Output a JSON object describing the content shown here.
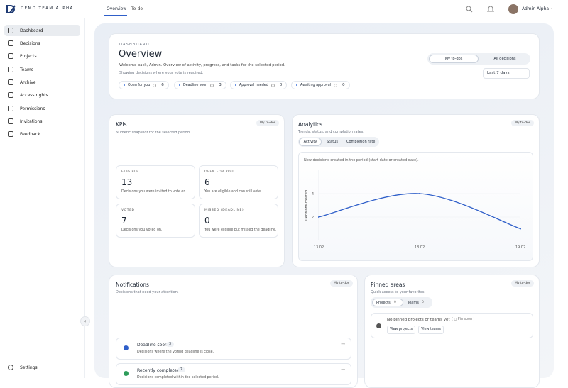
{
  "brand": "DEMO TEAM ALPHA",
  "top_tabs": [
    "Overview",
    "To-do"
  ],
  "user": "Admin Alpha",
  "sidebar": [
    "Dashboard",
    "Decisions",
    "Projects",
    "Teams",
    "Archive",
    "Access rights",
    "Permissions",
    "Invitations",
    "Feedback"
  ],
  "settings": "Settings",
  "overview": {
    "eyebrow": "DASHBOARD",
    "title": "Overview",
    "welcome": "Welcome back, Admin. Overview of activity, progress, and tasks for the selected period.",
    "note": "Showing decisions where your vote is required.",
    "chips": [
      {
        "label": "Open for you",
        "count": "6"
      },
      {
        "label": "Deadline soon",
        "count": "3"
      },
      {
        "label": "Approval needed",
        "count": "0"
      },
      {
        "label": "Awaiting approval",
        "count": "0"
      }
    ],
    "toggle": [
      "My to-dos",
      "All decisions"
    ],
    "period": "Last 7 days"
  },
  "kpis": {
    "title": "KPIs",
    "subtitle": "Numeric snapshot for the selected period.",
    "badge": "My to-dos",
    "items": [
      {
        "label": "ELIGIBLE",
        "value": "13",
        "desc": "Decisions you were invited to vote on."
      },
      {
        "label": "OPEN FOR YOU",
        "value": "6",
        "desc": "You are eligible and can still vote."
      },
      {
        "label": "VOTED",
        "value": "7",
        "desc": "Decisions you voted on."
      },
      {
        "label": "MISSED (DEADLINE)",
        "value": "0",
        "desc": "You were eligible but missed the deadline."
      }
    ]
  },
  "analytics": {
    "title": "Analytics",
    "subtitle": "Trends, status, and completion rates.",
    "badge": "My to-dos",
    "tabs": [
      "Activity",
      "Status",
      "Completion rate"
    ],
    "chart": {
      "type": "line",
      "note": "New decisions created in the period (start date or created date).",
      "y_label": "Decisions created",
      "categories": [
        "13.02",
        "18.02",
        "19.02"
      ],
      "values": [
        2,
        4,
        1
      ],
      "color": "#2f5fc9",
      "ylim": [
        0,
        6
      ],
      "yticks": [
        2,
        4
      ]
    }
  },
  "notifications": {
    "title": "Notifications",
    "subtitle": "Decisions that need your attention.",
    "badge": "My to-dos",
    "items": [
      {
        "title": "Deadline soon",
        "count": "3",
        "desc": "Decisions where the voting deadline is close."
      },
      {
        "title": "Recently completed",
        "count": "7",
        "desc": "Decisions completed within the selected period."
      }
    ]
  },
  "pinned": {
    "title": "Pinned areas",
    "subtitle": "Quick access to your favorites.",
    "badge": "My to-dos",
    "tabs": [
      {
        "label": "Projects",
        "count": "0"
      },
      {
        "label": "Teams",
        "count": "0"
      }
    ],
    "empty": "No pinned projects or teams yet",
    "hint": "Pin soon",
    "buttons": [
      "View projects",
      "View teams"
    ]
  }
}
